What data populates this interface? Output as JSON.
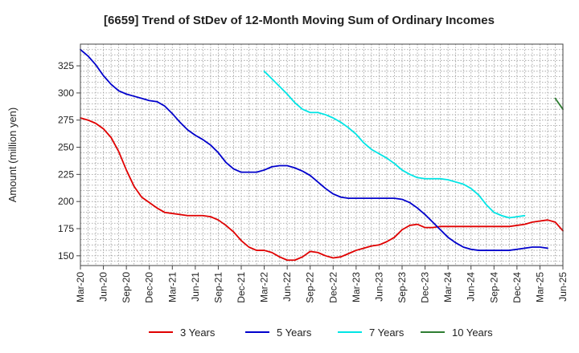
{
  "chart_data": {
    "type": "line",
    "title": "[6659]  Trend of StDev of 12-Month Moving Sum of Ordinary Incomes",
    "xlabel": "",
    "ylabel": "Amount (million yen)",
    "ylim": [
      141,
      345
    ],
    "yticks": [
      150,
      175,
      200,
      225,
      250,
      275,
      300,
      325
    ],
    "xticks": [
      "Mar-20",
      "Jun-20",
      "Sep-20",
      "Dec-20",
      "Mar-21",
      "Jun-21",
      "Sep-21",
      "Dec-21",
      "Mar-22",
      "Jun-22",
      "Sep-22",
      "Dec-22",
      "Mar-23",
      "Jun-23",
      "Sep-23",
      "Dec-23",
      "Mar-24",
      "Jun-24",
      "Sep-24",
      "Dec-24",
      "Mar-25",
      "Jun-25"
    ],
    "x_start": "Mar-20",
    "x_count": 64,
    "grid": true,
    "legend_position": "bottom",
    "series": [
      {
        "name": "3 Years",
        "color": "#e00000",
        "start_index": 0,
        "values": [
          277,
          275,
          272,
          267,
          259,
          246,
          229,
          214,
          204,
          199,
          194,
          190,
          189,
          188,
          187,
          187,
          187,
          186,
          183,
          178,
          172,
          164,
          158,
          155,
          155,
          153,
          149,
          146,
          146,
          149,
          154,
          153,
          150,
          148,
          149,
          152,
          155,
          157,
          159,
          160,
          163,
          167,
          174,
          178,
          179,
          176,
          176,
          177,
          177,
          177,
          177,
          177,
          177,
          177,
          177,
          177,
          177,
          178,
          179,
          181,
          182,
          183,
          181,
          173
        ]
      },
      {
        "name": "5 Years",
        "color": "#0000cc",
        "start_index": 0,
        "values": [
          340,
          334,
          326,
          316,
          308,
          302,
          299,
          297,
          295,
          293,
          292,
          288,
          281,
          273,
          266,
          261,
          257,
          252,
          245,
          236,
          230,
          227,
          227,
          227,
          229,
          232,
          233,
          233,
          231,
          228,
          224,
          218,
          212,
          207,
          204,
          203,
          203,
          203,
          203,
          203,
          203,
          203,
          202,
          199,
          194,
          188,
          181,
          174,
          167,
          162,
          158,
          156,
          155,
          155,
          155,
          155,
          155,
          156,
          157,
          158,
          158,
          157
        ]
      },
      {
        "name": "7 Years",
        "color": "#00e5e5",
        "start_index": 24,
        "values": [
          320,
          313,
          306,
          299,
          291,
          285,
          282,
          282,
          280,
          277,
          273,
          268,
          262,
          254,
          248,
          244,
          240,
          235,
          229,
          225,
          222,
          221,
          221,
          221,
          220,
          218,
          216,
          212,
          206,
          197,
          190,
          187,
          185,
          186,
          187
        ]
      },
      {
        "name": "10 Years",
        "color": "#2e7d32",
        "start_index": 62,
        "values": [
          295,
          285
        ]
      }
    ]
  }
}
